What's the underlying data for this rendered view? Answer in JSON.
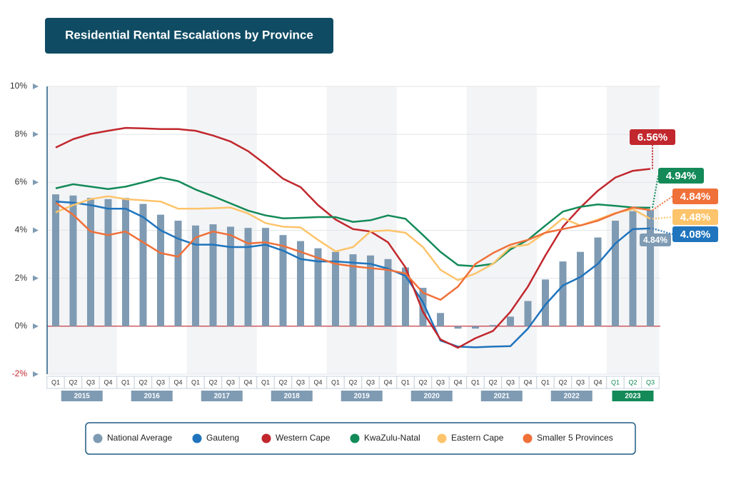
{
  "chart_data": {
    "type": "bar-line",
    "title": "Residential Rental Escalations by Province",
    "categories": [
      "Q1",
      "Q2",
      "Q3",
      "Q4",
      "Q1",
      "Q2",
      "Q3",
      "Q4",
      "Q1",
      "Q2",
      "Q3",
      "Q4",
      "Q1",
      "Q2",
      "Q3",
      "Q4",
      "Q1",
      "Q2",
      "Q3",
      "Q4",
      "Q1",
      "Q2",
      "Q3",
      "Q4",
      "Q1",
      "Q2",
      "Q3",
      "Q4",
      "Q1",
      "Q2",
      "Q3",
      "Q4",
      "Q1",
      "Q2",
      "Q3"
    ],
    "years": [
      "2015",
      "2016",
      "2017",
      "2018",
      "2019",
      "2020",
      "2021",
      "2022",
      "2023"
    ],
    "ylim": [
      -2,
      10
    ],
    "yticks": [
      {
        "value": -2,
        "label": "-2%"
      },
      {
        "value": 0,
        "label": "0%"
      },
      {
        "value": 2,
        "label": "2%"
      },
      {
        "value": 4,
        "label": "4%"
      },
      {
        "value": 6,
        "label": "6%"
      },
      {
        "value": 8,
        "label": "8%"
      },
      {
        "value": 10,
        "label": "10%"
      }
    ],
    "grid": true,
    "legend": "bottom",
    "series": [
      {
        "name": "National Average",
        "type": "bar",
        "color": "#7f9bb3",
        "values": [
          5.5,
          5.45,
          5.35,
          5.3,
          5.35,
          5.1,
          4.65,
          4.4,
          4.2,
          4.25,
          4.15,
          4.1,
          4.1,
          3.8,
          3.55,
          3.25,
          3.1,
          3.0,
          2.95,
          2.8,
          2.45,
          1.6,
          0.55,
          -0.1,
          -0.1,
          0.05,
          0.4,
          1.05,
          1.95,
          2.7,
          3.1,
          3.7,
          4.4,
          4.8,
          4.84
        ],
        "value_labels": [
          null,
          null,
          null,
          null,
          null,
          null,
          null,
          null,
          null,
          null,
          null,
          null,
          null,
          null,
          null,
          null,
          null,
          null,
          null,
          null,
          null,
          null,
          null,
          null,
          null,
          null,
          null,
          null,
          null,
          null,
          null,
          null,
          null,
          null,
          "4.84%"
        ]
      },
      {
        "name": "Gauteng",
        "type": "line",
        "color": "#1f74bd",
        "values": [
          5.2,
          5.15,
          5.05,
          4.9,
          4.9,
          4.55,
          4.0,
          3.65,
          3.4,
          3.4,
          3.3,
          3.3,
          3.4,
          3.15,
          2.8,
          2.7,
          2.7,
          2.65,
          2.6,
          2.4,
          2.1,
          1.0,
          -0.6,
          -0.85,
          -0.88,
          -0.85,
          -0.83,
          -0.1,
          0.9,
          1.7,
          2.05,
          2.6,
          3.45,
          4.05,
          4.08
        ],
        "value_labels": [
          null,
          null,
          null,
          null,
          null,
          null,
          null,
          null,
          null,
          null,
          null,
          null,
          null,
          null,
          null,
          null,
          null,
          null,
          null,
          null,
          null,
          null,
          null,
          null,
          null,
          null,
          null,
          null,
          null,
          null,
          null,
          null,
          null,
          null,
          "4.08%"
        ]
      },
      {
        "name": "Western Cape",
        "type": "line",
        "color": "#c1272d",
        "values": [
          7.45,
          7.8,
          8.02,
          8.15,
          8.27,
          8.25,
          8.22,
          8.22,
          8.15,
          7.95,
          7.7,
          7.3,
          6.75,
          6.15,
          5.8,
          5.05,
          4.45,
          4.05,
          3.95,
          3.5,
          2.45,
          0.6,
          -0.55,
          -0.9,
          -0.5,
          -0.2,
          0.6,
          1.65,
          2.95,
          4.15,
          4.95,
          5.65,
          6.2,
          6.48,
          6.56
        ],
        "value_labels": [
          null,
          null,
          null,
          null,
          null,
          null,
          null,
          null,
          null,
          null,
          null,
          null,
          null,
          null,
          null,
          null,
          null,
          null,
          null,
          null,
          null,
          null,
          null,
          null,
          null,
          null,
          null,
          null,
          null,
          null,
          null,
          null,
          null,
          null,
          "6.56%"
        ]
      },
      {
        "name": "KwaZulu-Natal",
        "type": "line",
        "color": "#138a58",
        "values": [
          5.75,
          5.92,
          5.82,
          5.72,
          5.82,
          6.0,
          6.2,
          6.05,
          5.7,
          5.42,
          5.12,
          4.82,
          4.62,
          4.5,
          4.52,
          4.55,
          4.55,
          4.35,
          4.42,
          4.62,
          4.48,
          3.8,
          3.1,
          2.55,
          2.5,
          2.6,
          3.2,
          3.6,
          4.2,
          4.78,
          4.98,
          5.08,
          5.02,
          4.95,
          4.94
        ],
        "value_labels": [
          null,
          null,
          null,
          null,
          null,
          null,
          null,
          null,
          null,
          null,
          null,
          null,
          null,
          null,
          null,
          null,
          null,
          null,
          null,
          null,
          null,
          null,
          null,
          null,
          null,
          null,
          null,
          null,
          null,
          null,
          null,
          null,
          null,
          null,
          "4.94%"
        ]
      },
      {
        "name": "Eastern Cape",
        "type": "line",
        "color": "#fdc46b",
        "values": [
          4.75,
          5.05,
          5.3,
          5.42,
          5.3,
          5.25,
          5.2,
          4.9,
          4.9,
          4.92,
          4.95,
          4.7,
          4.3,
          4.15,
          4.12,
          3.6,
          3.12,
          3.3,
          3.95,
          4.0,
          3.9,
          3.3,
          2.35,
          1.92,
          2.2,
          2.6,
          3.3,
          3.4,
          3.9,
          4.5,
          4.2,
          4.45,
          4.72,
          4.88,
          4.48
        ],
        "value_labels": [
          null,
          null,
          null,
          null,
          null,
          null,
          null,
          null,
          null,
          null,
          null,
          null,
          null,
          null,
          null,
          null,
          null,
          null,
          null,
          null,
          null,
          null,
          null,
          null,
          null,
          null,
          null,
          null,
          null,
          null,
          null,
          null,
          null,
          null,
          "4.48%"
        ]
      },
      {
        "name": "Smaller 5 Provinces",
        "type": "line",
        "color": "#f07039",
        "values": [
          5.15,
          4.65,
          3.95,
          3.8,
          3.95,
          3.5,
          3.05,
          2.9,
          3.7,
          3.95,
          3.8,
          3.45,
          3.5,
          3.35,
          3.1,
          2.85,
          2.6,
          2.5,
          2.42,
          2.35,
          2.2,
          1.4,
          1.1,
          1.65,
          2.6,
          3.05,
          3.4,
          3.6,
          3.9,
          4.05,
          4.2,
          4.4,
          4.7,
          4.95,
          4.84
        ],
        "value_labels": [
          null,
          null,
          null,
          null,
          null,
          null,
          null,
          null,
          null,
          null,
          null,
          null,
          null,
          null,
          null,
          null,
          null,
          null,
          null,
          null,
          null,
          null,
          null,
          null,
          null,
          null,
          null,
          null,
          null,
          null,
          null,
          null,
          null,
          null,
          "4.84%"
        ]
      }
    ]
  }
}
